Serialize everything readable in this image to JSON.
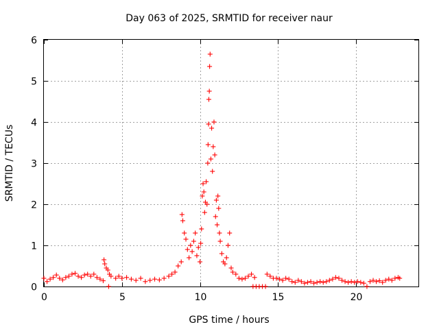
{
  "chart_data": {
    "type": "scatter",
    "title": "Day 063 of 2025, SRMTID for receiver naur",
    "xlabel": "GPS time / hours",
    "ylabel": "SRMTID / TECUs",
    "xlim": [
      0,
      24
    ],
    "ylim": [
      0,
      6
    ],
    "xticks": [
      0,
      5,
      10,
      15,
      20
    ],
    "yticks": [
      0,
      1,
      2,
      3,
      4,
      5,
      6
    ],
    "xtick_labels": [
      "0",
      "5",
      "10",
      "15",
      "20"
    ],
    "ytick_labels": [
      "0",
      "1",
      "2",
      "3",
      "4",
      "5",
      "6"
    ],
    "grid": true,
    "marker": "+",
    "color": "#ff0000",
    "series": [
      {
        "name": "SRMTID",
        "points": [
          [
            0.0,
            0.2
          ],
          [
            0.2,
            0.12
          ],
          [
            0.4,
            0.18
          ],
          [
            0.6,
            0.22
          ],
          [
            0.8,
            0.28
          ],
          [
            1.0,
            0.2
          ],
          [
            1.2,
            0.16
          ],
          [
            1.4,
            0.22
          ],
          [
            1.6,
            0.25
          ],
          [
            1.8,
            0.3
          ],
          [
            2.0,
            0.32
          ],
          [
            2.2,
            0.25
          ],
          [
            2.4,
            0.22
          ],
          [
            2.6,
            0.28
          ],
          [
            2.8,
            0.3
          ],
          [
            3.0,
            0.25
          ],
          [
            3.2,
            0.3
          ],
          [
            3.4,
            0.22
          ],
          [
            3.6,
            0.18
          ],
          [
            3.8,
            0.14
          ],
          [
            3.85,
            0.65
          ],
          [
            3.9,
            0.55
          ],
          [
            4.0,
            0.45
          ],
          [
            4.1,
            0.4
          ],
          [
            4.2,
            0.3
          ],
          [
            4.3,
            0.25
          ],
          [
            4.15,
            0.0
          ],
          [
            4.6,
            0.2
          ],
          [
            4.8,
            0.25
          ],
          [
            5.0,
            0.2
          ],
          [
            5.3,
            0.22
          ],
          [
            5.6,
            0.18
          ],
          [
            5.9,
            0.15
          ],
          [
            6.2,
            0.2
          ],
          [
            6.5,
            0.12
          ],
          [
            6.8,
            0.15
          ],
          [
            7.1,
            0.18
          ],
          [
            7.4,
            0.16
          ],
          [
            7.7,
            0.2
          ],
          [
            8.0,
            0.25
          ],
          [
            8.2,
            0.3
          ],
          [
            8.4,
            0.35
          ],
          [
            8.6,
            0.5
          ],
          [
            8.8,
            0.6
          ],
          [
            8.85,
            1.75
          ],
          [
            8.9,
            1.6
          ],
          [
            9.0,
            1.3
          ],
          [
            9.1,
            1.15
          ],
          [
            9.2,
            0.9
          ],
          [
            9.3,
            0.7
          ],
          [
            9.4,
            1.0
          ],
          [
            9.5,
            0.85
          ],
          [
            9.6,
            1.1
          ],
          [
            9.7,
            1.3
          ],
          [
            9.8,
            0.75
          ],
          [
            9.9,
            0.95
          ],
          [
            10.0,
            0.6
          ],
          [
            10.05,
            1.05
          ],
          [
            10.1,
            1.4
          ],
          [
            10.15,
            2.2
          ],
          [
            10.2,
            2.5
          ],
          [
            10.25,
            2.3
          ],
          [
            10.3,
            1.8
          ],
          [
            10.35,
            2.05
          ],
          [
            10.4,
            2.55
          ],
          [
            10.45,
            2.0
          ],
          [
            10.5,
            3.0
          ],
          [
            10.52,
            3.45
          ],
          [
            10.55,
            3.95
          ],
          [
            10.57,
            4.55
          ],
          [
            10.6,
            4.75
          ],
          [
            10.62,
            5.35
          ],
          [
            10.65,
            5.65
          ],
          [
            10.7,
            3.1
          ],
          [
            10.75,
            3.85
          ],
          [
            10.8,
            2.8
          ],
          [
            10.85,
            3.4
          ],
          [
            10.9,
            4.0
          ],
          [
            10.95,
            3.2
          ],
          [
            11.0,
            1.7
          ],
          [
            11.05,
            2.1
          ],
          [
            11.1,
            1.5
          ],
          [
            11.15,
            2.2
          ],
          [
            11.2,
            1.9
          ],
          [
            11.25,
            1.3
          ],
          [
            11.3,
            1.1
          ],
          [
            11.4,
            0.8
          ],
          [
            11.5,
            0.6
          ],
          [
            11.6,
            0.55
          ],
          [
            11.7,
            0.7
          ],
          [
            11.8,
            1.0
          ],
          [
            11.9,
            1.3
          ],
          [
            12.0,
            0.45
          ],
          [
            12.1,
            0.35
          ],
          [
            12.3,
            0.3
          ],
          [
            12.5,
            0.2
          ],
          [
            12.7,
            0.18
          ],
          [
            12.9,
            0.2
          ],
          [
            13.1,
            0.25
          ],
          [
            13.3,
            0.3
          ],
          [
            13.5,
            0.22
          ],
          [
            13.4,
            0.0
          ],
          [
            13.6,
            0.0
          ],
          [
            13.8,
            0.0
          ],
          [
            14.0,
            0.0
          ],
          [
            14.2,
            0.0
          ],
          [
            14.3,
            0.3
          ],
          [
            14.5,
            0.25
          ],
          [
            14.7,
            0.2
          ],
          [
            14.9,
            0.2
          ],
          [
            15.1,
            0.18
          ],
          [
            15.3,
            0.15
          ],
          [
            15.5,
            0.2
          ],
          [
            15.7,
            0.18
          ],
          [
            15.9,
            0.12
          ],
          [
            16.1,
            0.1
          ],
          [
            16.3,
            0.15
          ],
          [
            16.5,
            0.12
          ],
          [
            16.7,
            0.08
          ],
          [
            16.9,
            0.1
          ],
          [
            17.1,
            0.12
          ],
          [
            17.3,
            0.08
          ],
          [
            17.5,
            0.1
          ],
          [
            17.7,
            0.12
          ],
          [
            17.9,
            0.1
          ],
          [
            18.1,
            0.12
          ],
          [
            18.3,
            0.15
          ],
          [
            18.5,
            0.18
          ],
          [
            18.7,
            0.22
          ],
          [
            18.9,
            0.2
          ],
          [
            19.1,
            0.15
          ],
          [
            19.3,
            0.12
          ],
          [
            19.5,
            0.1
          ],
          [
            19.7,
            0.12
          ],
          [
            19.9,
            0.1
          ],
          [
            20.1,
            0.12
          ],
          [
            20.3,
            0.1
          ],
          [
            20.5,
            0.08
          ],
          [
            20.7,
            0.0
          ],
          [
            20.9,
            0.12
          ],
          [
            21.1,
            0.15
          ],
          [
            21.3,
            0.12
          ],
          [
            21.5,
            0.14
          ],
          [
            21.7,
            0.1
          ],
          [
            21.9,
            0.15
          ],
          [
            22.1,
            0.18
          ],
          [
            22.3,
            0.15
          ],
          [
            22.5,
            0.2
          ],
          [
            22.7,
            0.22
          ],
          [
            22.8,
            0.2
          ]
        ]
      }
    ]
  }
}
